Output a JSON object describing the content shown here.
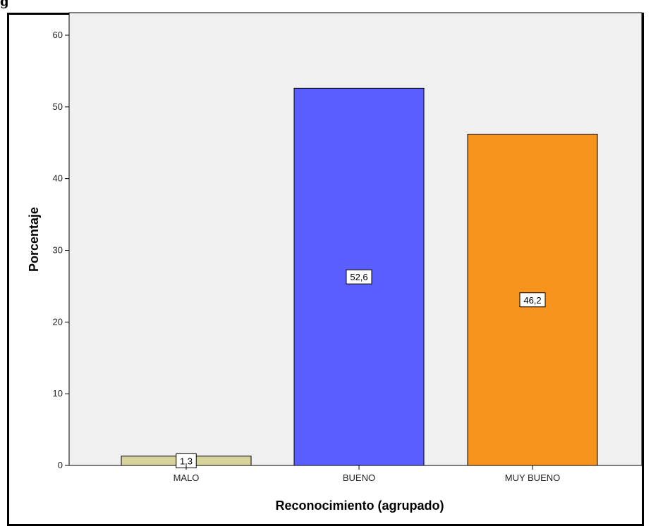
{
  "figure_caption": "g",
  "chart_data": {
    "type": "bar",
    "title": "",
    "xlabel": "Reconocimiento (agrupado)",
    "ylabel": "Porcentaje",
    "categories": [
      "MALO",
      "BUENO",
      "MUY BUENO"
    ],
    "values": [
      1.3,
      52.6,
      46.2
    ],
    "data_labels": [
      "1,3",
      "52,6",
      "46,2"
    ],
    "colors": [
      "#d6d49c",
      "#5b5eff",
      "#f7941d"
    ],
    "ylim": [
      0,
      60
    ],
    "yticks": [
      0,
      10,
      20,
      30,
      40,
      50,
      60
    ],
    "grid": false,
    "plot_background": "#f0f0f0"
  }
}
